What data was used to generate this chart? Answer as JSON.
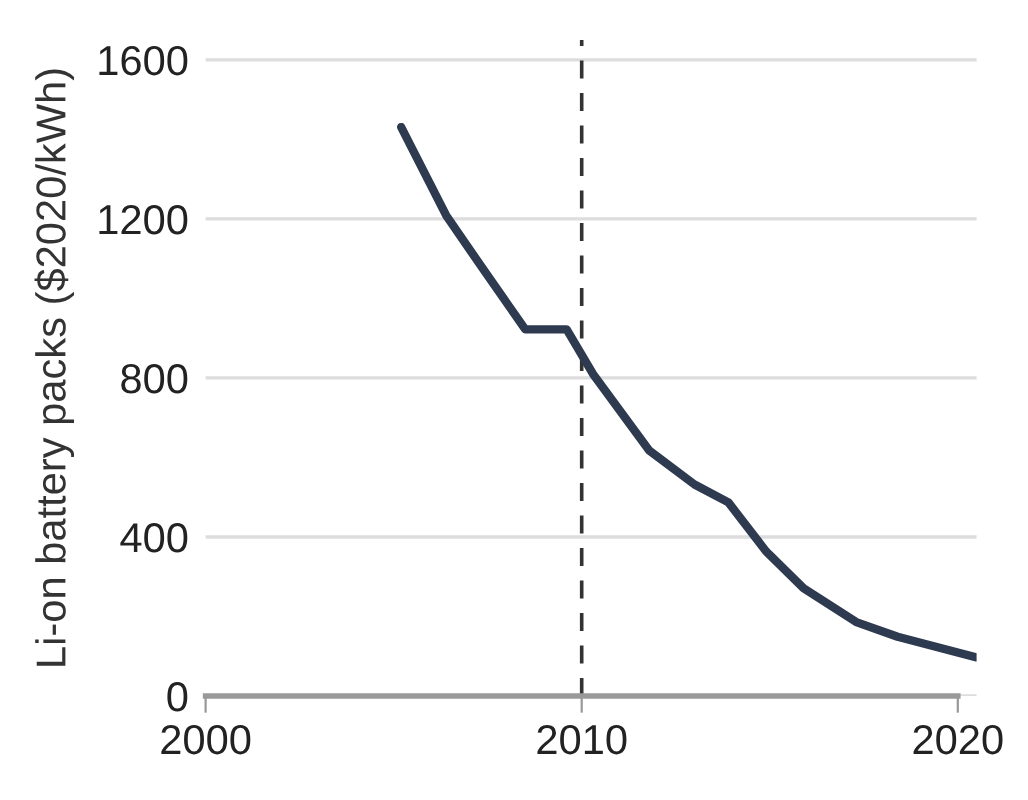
{
  "chart_data": {
    "type": "line",
    "ylabel": "Li-on battery packs ($2020/kWh)",
    "x": [
      2005.2,
      2006.4,
      2007.4,
      2008.5,
      2009.6,
      2010.3,
      2011.8,
      2013.0,
      2013.9,
      2014.9,
      2015.9,
      2017.3,
      2018.4,
      2020.5
    ],
    "series": [
      {
        "color": "#2e3a4f",
        "values": [
          1431,
          1208,
          1071,
          922,
          922,
          810,
          617,
          532,
          487,
          364,
          271,
          186,
          149,
          97
        ]
      }
    ],
    "xlim": [
      2000,
      2020.5
    ],
    "xticks": [
      2000,
      2010,
      2020
    ],
    "ylim": [
      0,
      1650
    ],
    "yticks": [
      0,
      400,
      800,
      1200,
      1600
    ],
    "grid": "y",
    "legend": false,
    "ref_lines": [
      {
        "axis": "x",
        "value": 2010,
        "line_style": "dashed",
        "color": "#333333"
      }
    ]
  }
}
